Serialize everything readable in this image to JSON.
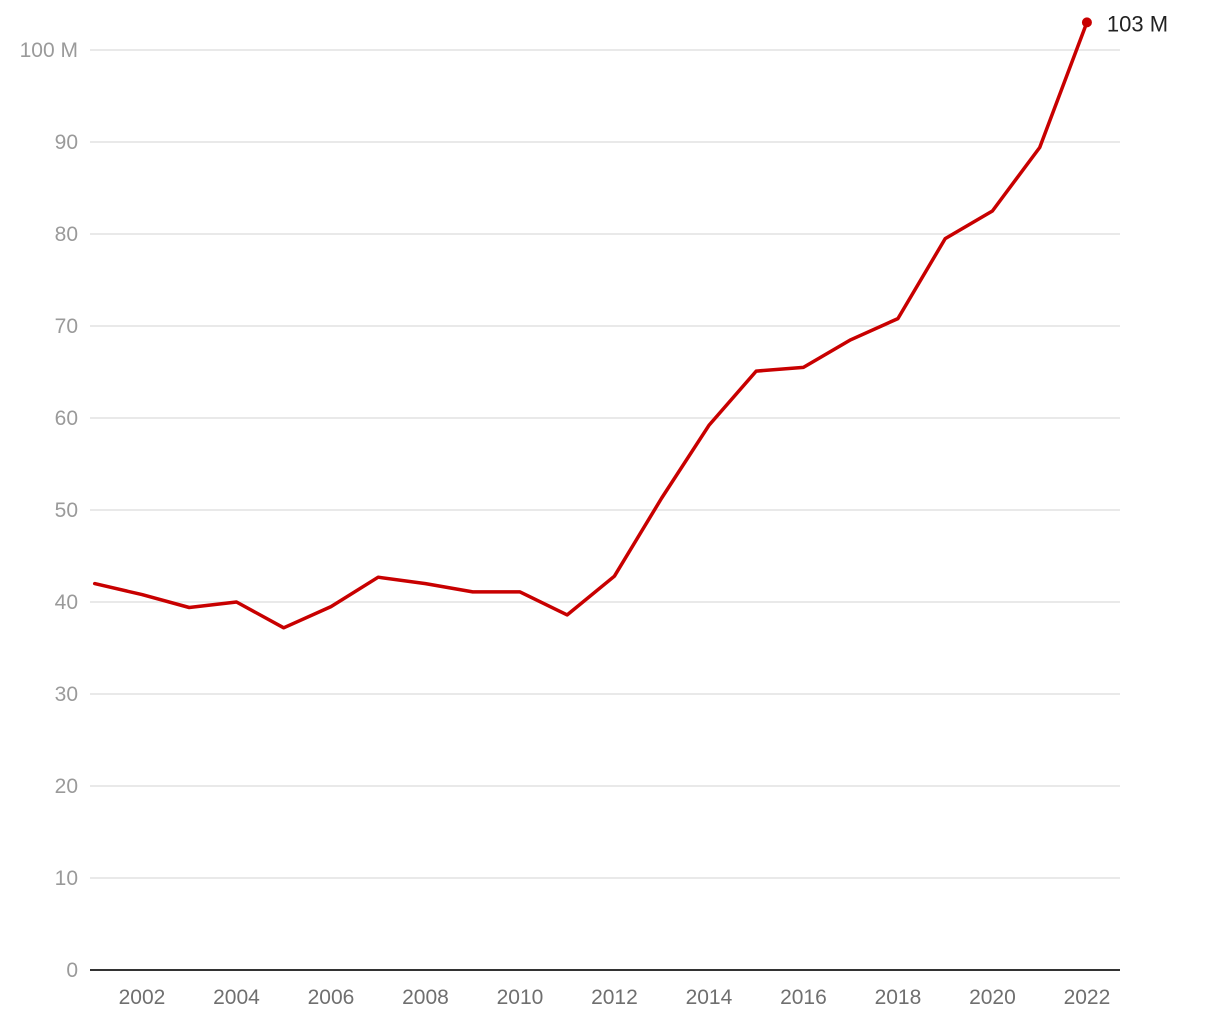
{
  "chart_data": {
    "type": "line",
    "title": "",
    "xlabel": "",
    "ylabel": "",
    "xlim": [
      2000.9,
      2022.7
    ],
    "ylim": [
      0,
      100
    ],
    "grid": true,
    "y_ticks": [
      {
        "value": 0,
        "label": "0"
      },
      {
        "value": 10,
        "label": "10"
      },
      {
        "value": 20,
        "label": "20"
      },
      {
        "value": 30,
        "label": "30"
      },
      {
        "value": 40,
        "label": "40"
      },
      {
        "value": 50,
        "label": "50"
      },
      {
        "value": 60,
        "label": "60"
      },
      {
        "value": 70,
        "label": "70"
      },
      {
        "value": 80,
        "label": "80"
      },
      {
        "value": 90,
        "label": "90"
      },
      {
        "value": 100,
        "label": "100 M"
      }
    ],
    "x_ticks": [
      2002,
      2004,
      2006,
      2008,
      2010,
      2012,
      2014,
      2016,
      2018,
      2020,
      2022
    ],
    "series": [
      {
        "color": "#c80000",
        "x": [
          2001,
          2002,
          2003,
          2004,
          2005,
          2006,
          2007,
          2008,
          2009,
          2010,
          2011,
          2012,
          2013,
          2014,
          2015,
          2016,
          2017,
          2018,
          2019,
          2020,
          2021,
          2022
        ],
        "y": [
          42.0,
          40.8,
          39.4,
          40.0,
          37.2,
          39.5,
          42.7,
          42.0,
          41.1,
          41.1,
          38.6,
          42.8,
          51.3,
          59.2,
          65.1,
          65.5,
          68.5,
          70.8,
          79.5,
          82.5,
          89.4,
          103.0
        ]
      }
    ],
    "end_label": "103 M"
  }
}
